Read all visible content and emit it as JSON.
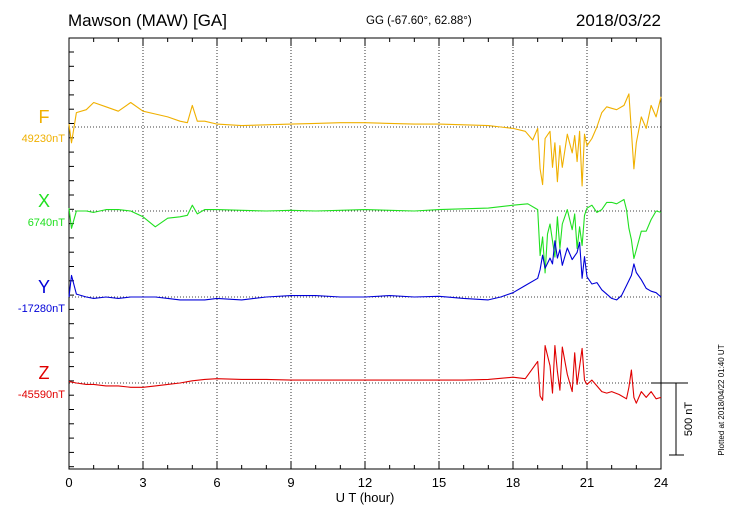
{
  "header": {
    "station": "Mawson (MAW)  [GA]",
    "coords": "GG (-67.60°,  62.88°)",
    "date": "2018/03/22"
  },
  "plotted_note": "Plotted at 2018/04/22 01:40 UT",
  "scale_label": "500 nT",
  "colors": {
    "F": "#f0b000",
    "X": "#20e020",
    "Y": "#0000d8",
    "Z": "#e00000"
  },
  "chart_data": {
    "type": "line",
    "title": "Mawson (MAW)  [GA]",
    "xlabel": "U T (hour)",
    "xlim": [
      0,
      24
    ],
    "x_ticks": [
      "0",
      "3",
      "6",
      "9",
      "12",
      "15",
      "18",
      "21",
      "24"
    ],
    "grid": true,
    "y_unit": "nT",
    "scale_bar_nT": 500,
    "series": [
      {
        "name": "F",
        "baseline_label": "49230nT",
        "baseline": 49230,
        "points": [
          [
            0,
            49250
          ],
          [
            0.1,
            49120
          ],
          [
            0.3,
            49330
          ],
          [
            0.7,
            49350
          ],
          [
            1,
            49400
          ],
          [
            1.5,
            49370
          ],
          [
            2,
            49340
          ],
          [
            2.5,
            49400
          ],
          [
            3,
            49340
          ],
          [
            3.5,
            49320
          ],
          [
            4,
            49300
          ],
          [
            4.5,
            49270
          ],
          [
            4.8,
            49260
          ],
          [
            5.0,
            49380
          ],
          [
            5.2,
            49270
          ],
          [
            5.5,
            49270
          ],
          [
            6,
            49250
          ],
          [
            7,
            49240
          ],
          [
            8,
            49245
          ],
          [
            9,
            49250
          ],
          [
            10,
            49255
          ],
          [
            11,
            49260
          ],
          [
            12,
            49260
          ],
          [
            13,
            49255
          ],
          [
            14,
            49250
          ],
          [
            15,
            49250
          ],
          [
            16,
            49245
          ],
          [
            17,
            49240
          ],
          [
            17.5,
            49230
          ],
          [
            18,
            49220
          ],
          [
            18.5,
            49200
          ],
          [
            18.8,
            49140
          ],
          [
            19.0,
            49220
          ],
          [
            19.1,
            48940
          ],
          [
            19.2,
            48830
          ],
          [
            19.3,
            49150
          ],
          [
            19.5,
            49200
          ],
          [
            19.6,
            48950
          ],
          [
            19.7,
            49120
          ],
          [
            19.8,
            48850
          ],
          [
            19.9,
            49100
          ],
          [
            20.0,
            48950
          ],
          [
            20.2,
            49180
          ],
          [
            20.4,
            49050
          ],
          [
            20.5,
            49170
          ],
          [
            20.6,
            48990
          ],
          [
            20.7,
            49200
          ],
          [
            20.8,
            48820
          ],
          [
            20.9,
            49180
          ],
          [
            21.0,
            49100
          ],
          [
            21.2,
            49150
          ],
          [
            21.4,
            49230
          ],
          [
            21.6,
            49330
          ],
          [
            21.8,
            49370
          ],
          [
            22.0,
            49360
          ],
          [
            22.2,
            49350
          ],
          [
            22.5,
            49380
          ],
          [
            22.7,
            49460
          ],
          [
            22.8,
            49200
          ],
          [
            22.9,
            48940
          ],
          [
            23.0,
            49120
          ],
          [
            23.2,
            49300
          ],
          [
            23.4,
            49220
          ],
          [
            23.6,
            49380
          ],
          [
            23.8,
            49300
          ],
          [
            24,
            49440
          ]
        ]
      },
      {
        "name": "X",
        "baseline_label": "6740nT",
        "baseline": 6740,
        "points": [
          [
            0,
            6760
          ],
          [
            0.1,
            6620
          ],
          [
            0.3,
            6740
          ],
          [
            0.7,
            6740
          ],
          [
            1,
            6730
          ],
          [
            1.5,
            6750
          ],
          [
            2,
            6750
          ],
          [
            2.5,
            6740
          ],
          [
            3,
            6700
          ],
          [
            3.5,
            6630
          ],
          [
            4,
            6690
          ],
          [
            4.5,
            6700
          ],
          [
            4.8,
            6710
          ],
          [
            5.0,
            6780
          ],
          [
            5.2,
            6720
          ],
          [
            5.5,
            6750
          ],
          [
            6,
            6750
          ],
          [
            7,
            6745
          ],
          [
            8,
            6740
          ],
          [
            9,
            6745
          ],
          [
            10,
            6740
          ],
          [
            11,
            6745
          ],
          [
            12,
            6750
          ],
          [
            13,
            6745
          ],
          [
            14,
            6740
          ],
          [
            15,
            6750
          ],
          [
            16,
            6755
          ],
          [
            17,
            6760
          ],
          [
            18,
            6780
          ],
          [
            18.6,
            6790
          ],
          [
            19.0,
            6750
          ],
          [
            19.1,
            6430
          ],
          [
            19.2,
            6560
          ],
          [
            19.3,
            6310
          ],
          [
            19.4,
            6580
          ],
          [
            19.5,
            6650
          ],
          [
            19.7,
            6420
          ],
          [
            19.8,
            6700
          ],
          [
            19.9,
            6480
          ],
          [
            20.0,
            6650
          ],
          [
            20.2,
            6750
          ],
          [
            20.4,
            6610
          ],
          [
            20.5,
            6720
          ],
          [
            20.6,
            6480
          ],
          [
            20.7,
            6630
          ],
          [
            20.8,
            6500
          ],
          [
            20.9,
            6710
          ],
          [
            21.0,
            6760
          ],
          [
            21.2,
            6780
          ],
          [
            21.4,
            6730
          ],
          [
            21.6,
            6750
          ],
          [
            21.8,
            6800
          ],
          [
            22.0,
            6800
          ],
          [
            22.2,
            6790
          ],
          [
            22.5,
            6820
          ],
          [
            22.6,
            6750
          ],
          [
            22.7,
            6620
          ],
          [
            22.8,
            6540
          ],
          [
            22.9,
            6410
          ],
          [
            23.0,
            6470
          ],
          [
            23.2,
            6600
          ],
          [
            23.4,
            6600
          ],
          [
            23.6,
            6680
          ],
          [
            23.8,
            6740
          ],
          [
            24,
            6730
          ]
        ]
      },
      {
        "name": "Y",
        "baseline_label": "-17280nT",
        "baseline": -17280,
        "points": [
          [
            0,
            -17280
          ],
          [
            0.1,
            -17130
          ],
          [
            0.3,
            -17260
          ],
          [
            0.7,
            -17280
          ],
          [
            1,
            -17290
          ],
          [
            1.5,
            -17280
          ],
          [
            2,
            -17290
          ],
          [
            2.5,
            -17280
          ],
          [
            3,
            -17280
          ],
          [
            3.5,
            -17280
          ],
          [
            4,
            -17290
          ],
          [
            4.5,
            -17300
          ],
          [
            5,
            -17300
          ],
          [
            5.5,
            -17300
          ],
          [
            6,
            -17290
          ],
          [
            7,
            -17300
          ],
          [
            8,
            -17280
          ],
          [
            9,
            -17270
          ],
          [
            10,
            -17270
          ],
          [
            11,
            -17280
          ],
          [
            12,
            -17280
          ],
          [
            13,
            -17270
          ],
          [
            14,
            -17280
          ],
          [
            15,
            -17275
          ],
          [
            16,
            -17290
          ],
          [
            17,
            -17300
          ],
          [
            17.5,
            -17280
          ],
          [
            18,
            -17250
          ],
          [
            18.5,
            -17200
          ],
          [
            19.0,
            -17150
          ],
          [
            19.1,
            -17090
          ],
          [
            19.2,
            -16990
          ],
          [
            19.3,
            -17080
          ],
          [
            19.5,
            -17010
          ],
          [
            19.6,
            -17050
          ],
          [
            19.7,
            -16890
          ],
          [
            19.8,
            -17010
          ],
          [
            19.9,
            -16950
          ],
          [
            20.0,
            -17060
          ],
          [
            20.2,
            -16940
          ],
          [
            20.4,
            -17020
          ],
          [
            20.6,
            -16970
          ],
          [
            20.7,
            -16900
          ],
          [
            20.8,
            -17150
          ],
          [
            20.9,
            -17000
          ],
          [
            21.0,
            -17140
          ],
          [
            21.2,
            -17190
          ],
          [
            21.4,
            -17180
          ],
          [
            21.6,
            -17230
          ],
          [
            21.8,
            -17260
          ],
          [
            22.0,
            -17290
          ],
          [
            22.2,
            -17300
          ],
          [
            22.4,
            -17270
          ],
          [
            22.6,
            -17200
          ],
          [
            22.8,
            -17130
          ],
          [
            22.9,
            -17050
          ],
          [
            23.0,
            -17110
          ],
          [
            23.2,
            -17160
          ],
          [
            23.4,
            -17220
          ],
          [
            23.6,
            -17240
          ],
          [
            23.8,
            -17250
          ],
          [
            24,
            -17280
          ]
        ]
      },
      {
        "name": "Z",
        "baseline_label": "-45590nT",
        "baseline": -45590,
        "points": [
          [
            0,
            -45580
          ],
          [
            0.3,
            -45590
          ],
          [
            0.7,
            -45600
          ],
          [
            1,
            -45600
          ],
          [
            1.5,
            -45610
          ],
          [
            2,
            -45610
          ],
          [
            2.5,
            -45620
          ],
          [
            3,
            -45620
          ],
          [
            3.5,
            -45610
          ],
          [
            4,
            -45600
          ],
          [
            4.5,
            -45590
          ],
          [
            5,
            -45575
          ],
          [
            5.5,
            -45565
          ],
          [
            6,
            -45560
          ],
          [
            7,
            -45565
          ],
          [
            8,
            -45565
          ],
          [
            9,
            -45570
          ],
          [
            10,
            -45570
          ],
          [
            11,
            -45570
          ],
          [
            12,
            -45570
          ],
          [
            13,
            -45570
          ],
          [
            14,
            -45570
          ],
          [
            15,
            -45570
          ],
          [
            16,
            -45570
          ],
          [
            17,
            -45565
          ],
          [
            18,
            -45550
          ],
          [
            18.5,
            -45560
          ],
          [
            19.0,
            -45440
          ],
          [
            19.1,
            -45680
          ],
          [
            19.2,
            -45710
          ],
          [
            19.3,
            -45330
          ],
          [
            19.5,
            -45470
          ],
          [
            19.6,
            -45660
          ],
          [
            19.7,
            -45330
          ],
          [
            19.8,
            -45510
          ],
          [
            19.9,
            -45640
          ],
          [
            20.0,
            -45340
          ],
          [
            20.2,
            -45530
          ],
          [
            20.4,
            -45650
          ],
          [
            20.5,
            -45380
          ],
          [
            20.6,
            -45600
          ],
          [
            20.8,
            -45350
          ],
          [
            20.9,
            -45570
          ],
          [
            21.0,
            -45600
          ],
          [
            21.2,
            -45570
          ],
          [
            21.4,
            -45610
          ],
          [
            21.6,
            -45650
          ],
          [
            21.8,
            -45660
          ],
          [
            22.0,
            -45650
          ],
          [
            22.3,
            -45670
          ],
          [
            22.6,
            -45700
          ],
          [
            22.7,
            -45620
          ],
          [
            22.8,
            -45500
          ],
          [
            22.9,
            -45690
          ],
          [
            23.0,
            -45730
          ],
          [
            23.2,
            -45650
          ],
          [
            23.4,
            -45690
          ],
          [
            23.6,
            -45650
          ],
          [
            23.8,
            -45700
          ],
          [
            24,
            -45690
          ]
        ]
      }
    ]
  }
}
